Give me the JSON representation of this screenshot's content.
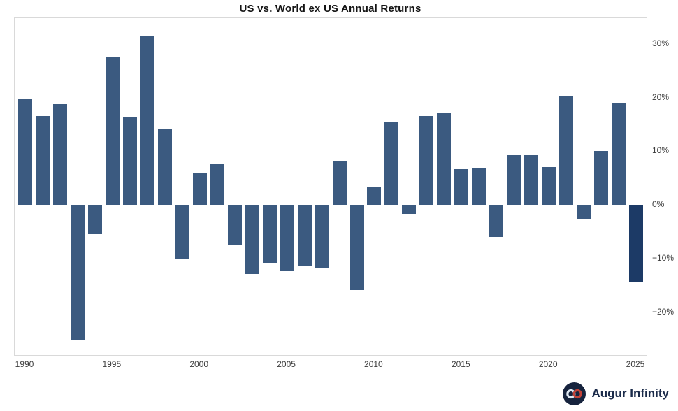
{
  "chart": {
    "title": "US vs. World ex US Annual Returns"
  },
  "chart_data": {
    "type": "bar",
    "title": "US vs. World ex US Annual Returns",
    "xlabel": "",
    "ylabel": "",
    "x": [
      1990,
      1991,
      1992,
      1993,
      1994,
      1995,
      1996,
      1997,
      1998,
      1999,
      2000,
      2001,
      2002,
      2003,
      2004,
      2005,
      2006,
      2007,
      2008,
      2009,
      2010,
      2011,
      2012,
      2013,
      2014,
      2015,
      2016,
      2017,
      2018,
      2019,
      2020,
      2021,
      2022,
      2023,
      2024,
      2025
    ],
    "values": [
      19.8,
      16.6,
      18.8,
      -25.2,
      -5.5,
      27.7,
      16.3,
      31.5,
      14.1,
      -10.0,
      5.9,
      7.6,
      -7.5,
      -12.9,
      -10.8,
      -12.4,
      -11.5,
      -11.8,
      8.1,
      -15.9,
      3.3,
      15.5,
      -1.7,
      16.6,
      17.2,
      6.6,
      6.9,
      -6.0,
      9.3,
      9.3,
      7.1,
      20.4,
      -2.7,
      10.0,
      18.9,
      -14.3
    ],
    "highlight_year": 2025,
    "reference_line": -14.3,
    "xticks": [
      1990,
      1995,
      2000,
      2005,
      2010,
      2015,
      2020,
      2025
    ],
    "xtick_labels": [
      "1990",
      "1995",
      "2000",
      "2005",
      "2010",
      "2015",
      "2020",
      "2025"
    ],
    "yticks": [
      30,
      20,
      10,
      0,
      -10,
      -20
    ],
    "ytick_labels": [
      "30%",
      "20%",
      "10%",
      "0%",
      "−10%",
      "−20%"
    ],
    "xlim": [
      1989.4,
      2025.6
    ],
    "ylim": [
      -28.0,
      34.8
    ],
    "grid": false,
    "legend": "none",
    "ytick_side": "right",
    "bar_color": "#3b5a80",
    "highlight_color": "#1c3a66",
    "reference_line_color": "#ababab",
    "border_color": "#d9d9d9",
    "background": "#ffffff"
  },
  "footer": {
    "brand": "Augur Infinity",
    "logo_colors": {
      "circle": "#16233d",
      "left_loop": "#dfe8f2",
      "right_loop": "#c24238"
    }
  }
}
